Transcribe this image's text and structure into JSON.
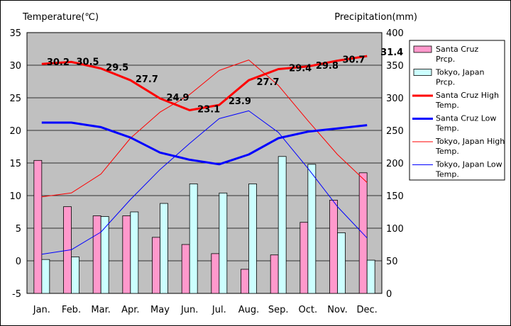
{
  "chart_data": {
    "type": "bar+line",
    "y_left_label": "Temperature(℃)",
    "y_right_label": "Precipitation(mm)",
    "y_left_ticks": [
      "35",
      "30",
      "25",
      "20",
      "15",
      "10",
      "5",
      "0",
      "-5"
    ],
    "y_right_ticks": [
      "400",
      "350",
      "300",
      "250",
      "200",
      "150",
      "100",
      "50",
      "0"
    ],
    "y_left_range": [
      -5,
      35
    ],
    "y_right_range": [
      0,
      400
    ],
    "grid": true,
    "categories": [
      "Jan.",
      "Feb.",
      "Mar.",
      "Apr.",
      "May",
      "Jun.",
      "Jul.",
      "Aug.",
      "Sep.",
      "Oct.",
      "Nov.",
      "Dec."
    ],
    "bar_series": [
      {
        "name": "Santa Cruz Prcp.",
        "color": "#ff99cc",
        "values": [
          204,
          133,
          119,
          119,
          86,
          75,
          61,
          37,
          59,
          109,
          143,
          185
        ]
      },
      {
        "name": "Tokyo, Japan Prcp.",
        "color": "#ccffff",
        "values": [
          52,
          56,
          118,
          125,
          138,
          168,
          154,
          168,
          210,
          198,
          93,
          51
        ]
      }
    ],
    "line_series": [
      {
        "name": "Santa Cruz High Temp.",
        "color": "#ff0000",
        "width": 3,
        "values": [
          30.2,
          30.5,
          29.5,
          27.7,
          24.9,
          23.1,
          23.9,
          27.7,
          29.4,
          29.8,
          30.7,
          31.4
        ],
        "labels": [
          "30.2",
          "30.5",
          "29.5",
          "27.7",
          "24.9",
          "23.1",
          "23.9",
          "27.7",
          "29.4",
          "29.8",
          "30.7",
          "31.4"
        ]
      },
      {
        "name": "Santa Cruz Low Temp.",
        "color": "#0000ff",
        "width": 3,
        "values": [
          21.2,
          21.2,
          20.5,
          18.9,
          16.6,
          15.5,
          14.8,
          16.3,
          18.8,
          19.8,
          20.3,
          20.8
        ]
      },
      {
        "name": "Tokyo, Japan High Temp.",
        "color": "#ff0000",
        "width": 1,
        "values": [
          9.8,
          10.4,
          13.3,
          18.8,
          22.8,
          25.5,
          29.2,
          30.8,
          26.9,
          21.5,
          16.3,
          12.0
        ]
      },
      {
        "name": "Tokyo, Japan Low Temp.",
        "color": "#0000ff",
        "width": 1,
        "values": [
          1.0,
          1.7,
          4.4,
          9.4,
          14.0,
          18.0,
          21.8,
          23.0,
          19.7,
          14.2,
          8.3,
          3.5
        ]
      }
    ],
    "legend": {
      "position": "right",
      "entries": [
        {
          "text": "Santa Cruz Prcp.",
          "kind": "bar",
          "color": "#ff99cc"
        },
        {
          "text": "Tokyo, Japan Prcp.",
          "kind": "bar",
          "color": "#ccffff"
        },
        {
          "text": "Santa Cruz High Temp.",
          "kind": "line",
          "color": "#ff0000",
          "width": 3
        },
        {
          "text": "Santa Cruz Low Temp.",
          "kind": "line",
          "color": "#0000ff",
          "width": 3
        },
        {
          "text": "Tokyo, Japan High Temp.",
          "kind": "line",
          "color": "#ff0000",
          "width": 1
        },
        {
          "text": "Tokyo, Japan Low Temp.",
          "kind": "line",
          "color": "#0000ff",
          "width": 1
        }
      ]
    }
  }
}
